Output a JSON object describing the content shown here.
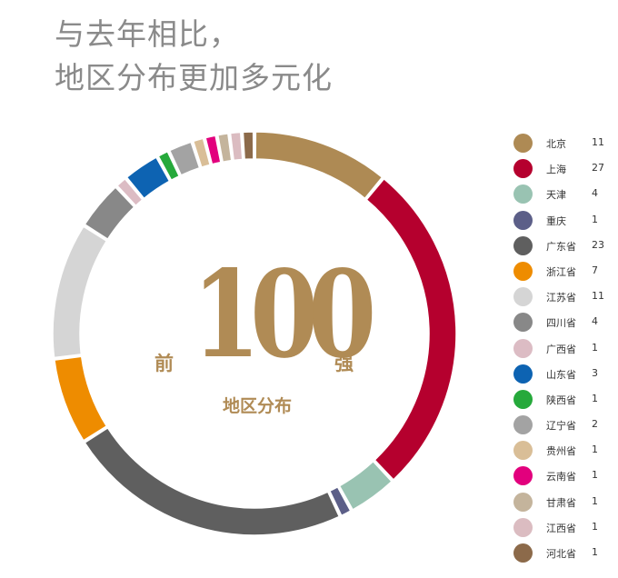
{
  "title": {
    "line1": "与去年相比，",
    "line2": "地区分布更加多元化"
  },
  "center": {
    "prefix": "前",
    "number": "100",
    "suffix": "强",
    "subtitle": "地区分布"
  },
  "chart_data": {
    "type": "pie",
    "style": "donut",
    "legend_position": "right",
    "slices": [
      {
        "name": "北京",
        "value": 11,
        "color": "#ae8a54"
      },
      {
        "name": "上海",
        "value": 27,
        "color": "#b5002e"
      },
      {
        "name": "天津",
        "value": 4,
        "color": "#99c3b2"
      },
      {
        "name": "重庆",
        "value": 1,
        "color": "#5c5f88"
      },
      {
        "name": "广东省",
        "value": 23,
        "color": "#5f5f5f"
      },
      {
        "name": "浙江省",
        "value": 7,
        "color": "#ee8c00"
      },
      {
        "name": "江苏省",
        "value": 11,
        "color": "#d5d5d5"
      },
      {
        "name": "四川省",
        "value": 4,
        "color": "#888888"
      },
      {
        "name": "广西省",
        "value": 1,
        "color": "#dcbcc4"
      },
      {
        "name": "山东省",
        "value": 3,
        "color": "#0d63b2"
      },
      {
        "name": "陕西省",
        "value": 1,
        "color": "#26a93b"
      },
      {
        "name": "辽宁省",
        "value": 2,
        "color": "#a3a3a3"
      },
      {
        "name": "贵州省",
        "value": 1,
        "color": "#d9be97"
      },
      {
        "name": "云南省",
        "value": 1,
        "color": "#e2007d"
      },
      {
        "name": "甘肃省",
        "value": 1,
        "color": "#c4b49c"
      },
      {
        "name": "江西省",
        "value": 1,
        "color": "#dbbcc1"
      },
      {
        "name": "河北省",
        "value": 1,
        "color": "#8c6a4a"
      }
    ]
  }
}
